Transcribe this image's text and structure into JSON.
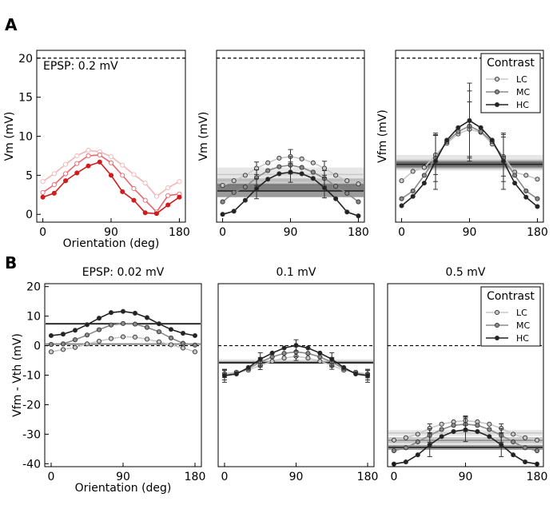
{
  "figure": {
    "panel_letters": [
      "A",
      "B"
    ]
  },
  "colors": {
    "red": [
      "#f4b3b5",
      "#e8656c",
      "#d01c1f"
    ],
    "gray": [
      "#c8c8c8",
      "#8a8a8a",
      "#222222"
    ]
  },
  "chart_data": [
    {
      "type": "line",
      "panel": "A",
      "ylabel": "Vm (mV)",
      "xlabel": "Orientation (deg)",
      "annotation": "EPSP: 0.2 mV",
      "threshold": 20,
      "xlim": [
        -8,
        188
      ],
      "ylim": [
        -1,
        21
      ],
      "xticks": [
        0,
        90,
        180
      ],
      "yticks": [
        0,
        5,
        10,
        15,
        20
      ],
      "palette": "red",
      "x": [
        0,
        15,
        30,
        45,
        60,
        75,
        90,
        105,
        120,
        135,
        150,
        165,
        180
      ],
      "series": [
        {
          "values": [
            4.2,
            5.2,
            6.4,
            7.5,
            8.2,
            8.0,
            7.4,
            6.3,
            5.1,
            4.0,
            2.3,
            3.4,
            4.2
          ],
          "band": [
            null,
            null
          ]
        },
        {
          "values": [
            2.8,
            3.8,
            5.2,
            6.5,
            7.5,
            7.6,
            6.6,
            5.0,
            3.3,
            1.8,
            0.3,
            2.4,
            2.6
          ],
          "band": [
            null,
            null
          ]
        },
        {
          "values": [
            2.2,
            2.7,
            4.3,
            5.3,
            6.2,
            6.7,
            5.0,
            2.9,
            1.8,
            0.2,
            0.1,
            1.2,
            2.2
          ],
          "band": [
            null,
            null
          ]
        }
      ]
    },
    {
      "type": "line",
      "panel": "A",
      "ylabel": "Vm (mV)",
      "xlabel": "",
      "annotation": "",
      "threshold": 20,
      "xlim": [
        -8,
        188
      ],
      "ylim": [
        -1,
        21
      ],
      "xticks": [
        0,
        90,
        180
      ],
      "yticks": [],
      "palette": "gray",
      "x": [
        0,
        15,
        30,
        45,
        60,
        75,
        90,
        105,
        120,
        135,
        150,
        165,
        180
      ],
      "series": [
        {
          "values": [
            3.7,
            4.3,
            5.0,
            5.9,
            6.6,
            7.2,
            7.4,
            7.1,
            6.6,
            5.9,
            5.0,
            4.3,
            3.9
          ],
          "err": [
            0,
            0,
            0,
            0.8,
            0,
            0,
            0.9,
            0,
            0,
            0.9,
            0,
            0,
            0
          ],
          "band": [
            4.2,
            6.0
          ]
        },
        {
          "values": [
            1.6,
            2.8,
            3.5,
            4.7,
            5.6,
            6.1,
            6.3,
            6.0,
            5.4,
            4.6,
            3.6,
            2.7,
            1.6
          ],
          "err": [
            0,
            0,
            0,
            1.0,
            0,
            0,
            1.1,
            0,
            0,
            1.0,
            0,
            0,
            0
          ],
          "band": [
            3.1,
            4.6
          ]
        },
        {
          "values": [
            0.0,
            0.4,
            1.8,
            3.3,
            4.5,
            5.2,
            5.4,
            5.2,
            4.6,
            3.4,
            2.0,
            0.3,
            -0.2
          ],
          "err": [
            0,
            0,
            0,
            1.3,
            0,
            0,
            1.3,
            0,
            0,
            1.3,
            0,
            0,
            0
          ],
          "band": [
            2.2,
            3.8
          ]
        }
      ]
    },
    {
      "type": "line",
      "panel": "A",
      "ylabel": "Vfm (mV)",
      "xlabel": "",
      "annotation": "",
      "threshold": 20,
      "xlim": [
        -8,
        188
      ],
      "ylim": [
        -1,
        21
      ],
      "xticks": [
        0,
        90,
        180
      ],
      "yticks": [],
      "palette": "gray",
      "legend": {
        "title": "Contrast",
        "entries": [
          "LC",
          "MC",
          "HC"
        ],
        "placement": "top-right"
      },
      "x": [
        0,
        15,
        30,
        45,
        60,
        75,
        90,
        105,
        120,
        135,
        150,
        165,
        180
      ],
      "series": [
        {
          "values": [
            4.3,
            5.5,
            6.0,
            7.6,
            9.1,
            10.3,
            10.9,
            10.5,
            9.0,
            7.4,
            5.4,
            5.0,
            4.5
          ],
          "err": [
            0,
            0,
            0,
            2.5,
            0,
            0,
            3.5,
            0,
            0,
            2.5,
            0,
            0,
            0
          ],
          "band": [
            5.6,
            7.6
          ]
        },
        {
          "values": [
            2.0,
            3.0,
            5.0,
            7.2,
            9.3,
            10.6,
            11.3,
            10.6,
            9.3,
            7.2,
            5.0,
            3.0,
            2.0
          ],
          "err": [
            0,
            0,
            0,
            3.0,
            0,
            0,
            4.5,
            0,
            0,
            3.0,
            0,
            0,
            0
          ],
          "band": [
            5.8,
            7.0
          ]
        },
        {
          "values": [
            1.1,
            2.3,
            4.0,
            6.8,
            9.5,
            11.1,
            12.0,
            11.1,
            9.5,
            6.8,
            4.0,
            2.2,
            1.0
          ],
          "err": [
            0,
            0,
            0,
            3.6,
            0,
            0,
            4.8,
            0,
            0,
            3.6,
            0,
            0,
            0
          ],
          "band": [
            6.0,
            6.8
          ]
        }
      ]
    },
    {
      "type": "line",
      "panel": "B",
      "title": "EPSP: 0.02 mV",
      "ylabel": "Vfm - Vth (mV)",
      "xlabel": "Orientation (deg)",
      "annotation": "",
      "threshold": 0,
      "xlim": [
        -8,
        188
      ],
      "ylim": [
        -41,
        21
      ],
      "xticks": [
        0,
        90,
        180
      ],
      "yticks": [
        -40,
        -30,
        -20,
        -10,
        0,
        10,
        20
      ],
      "palette": "gray",
      "x": [
        0,
        15,
        30,
        45,
        60,
        75,
        90,
        105,
        120,
        135,
        150,
        165,
        180
      ],
      "series": [
        {
          "values": [
            -2.1,
            -1.3,
            -0.6,
            0.6,
            1.5,
            2.4,
            3.0,
            2.9,
            2.2,
            1.3,
            0.3,
            -0.8,
            -2.1
          ],
          "band": [
            0.3,
            0.9
          ]
        },
        {
          "values": [
            0.4,
            0.6,
            2.0,
            3.6,
            5.4,
            7.0,
            7.5,
            7.3,
            6.2,
            4.7,
            2.6,
            0.8,
            0.2
          ],
          "band": [
            0.2,
            0.8
          ]
        },
        {
          "values": [
            3.4,
            3.9,
            5.2,
            7.1,
            9.3,
            11.2,
            11.6,
            11.0,
            9.5,
            7.4,
            5.5,
            4.2,
            3.4
          ],
          "band": [
            7.1,
            7.7
          ]
        }
      ]
    },
    {
      "type": "line",
      "panel": "B",
      "title": "0.1 mV",
      "ylabel": "",
      "xlabel": "",
      "annotation": "",
      "threshold": 0,
      "xlim": [
        -8,
        188
      ],
      "ylim": [
        -41,
        21
      ],
      "xticks": [
        0,
        90,
        180
      ],
      "yticks": [],
      "palette": "gray",
      "x": [
        0,
        15,
        30,
        45,
        60,
        75,
        90,
        105,
        120,
        135,
        150,
        165,
        180
      ],
      "series": [
        {
          "values": [
            -9.5,
            -9.0,
            -8.3,
            -6.7,
            -5.3,
            -4.2,
            -3.6,
            -4.2,
            -5.3,
            -6.7,
            -8.3,
            -9.0,
            -9.6
          ],
          "err": [
            1.3,
            0,
            0,
            1.4,
            0,
            0,
            1.4,
            0,
            0,
            1.3,
            0,
            0,
            1.3
          ],
          "band": [
            -6.0,
            -4.6
          ]
        },
        {
          "values": [
            -10.0,
            -9.4,
            -7.8,
            -5.6,
            -3.8,
            -2.6,
            -2.1,
            -2.6,
            -3.8,
            -5.6,
            -7.8,
            -9.4,
            -10.0
          ],
          "err": [
            1.6,
            0,
            0,
            1.6,
            0,
            0,
            1.7,
            0,
            0,
            1.6,
            0,
            0,
            1.6
          ],
          "band": [
            -6.1,
            -5.3
          ]
        },
        {
          "values": [
            -10.2,
            -9.6,
            -7.4,
            -4.6,
            -2.5,
            -0.8,
            0.1,
            -0.8,
            -2.5,
            -4.6,
            -7.4,
            -9.6,
            -10.2
          ],
          "err": [
            2.2,
            0,
            0,
            2.2,
            0,
            0,
            1.9,
            0,
            0,
            2.2,
            0,
            0,
            2.2
          ],
          "band": [
            -6.1,
            -5.5
          ]
        }
      ]
    },
    {
      "type": "line",
      "panel": "B",
      "title": "0.5 mV",
      "ylabel": "",
      "xlabel": "",
      "annotation": "",
      "threshold": 0,
      "xlim": [
        -8,
        188
      ],
      "ylim": [
        -41,
        21
      ],
      "xticks": [
        0,
        90,
        180
      ],
      "yticks": [],
      "palette": "gray",
      "legend": {
        "title": "Contrast",
        "entries": [
          "LC",
          "MC",
          "HC"
        ],
        "placement": "top-right"
      },
      "x": [
        0,
        15,
        30,
        45,
        60,
        75,
        90,
        105,
        120,
        135,
        150,
        165,
        180
      ],
      "series": [
        {
          "values": [
            -32.0,
            -31.2,
            -30.0,
            -28.0,
            -26.6,
            -25.8,
            -25.4,
            -25.8,
            -26.6,
            -28.0,
            -30.0,
            -31.2,
            -32.0
          ],
          "err": [
            0,
            0,
            0,
            1.5,
            0,
            0,
            1.6,
            0,
            0,
            1.5,
            0,
            0,
            0
          ],
          "band": [
            -30.6,
            -28.6
          ]
        },
        {
          "values": [
            -35.6,
            -34.6,
            -32.6,
            -30.4,
            -28.4,
            -27.0,
            -26.6,
            -27.0,
            -28.4,
            -30.4,
            -32.6,
            -34.6,
            -35.6
          ],
          "err": [
            0,
            0,
            0,
            2.3,
            0,
            0,
            2.5,
            0,
            0,
            2.3,
            0,
            0,
            0
          ],
          "band": [
            -33.2,
            -31.0
          ]
        },
        {
          "values": [
            -40.1,
            -39.4,
            -37.0,
            -33.6,
            -30.8,
            -29.1,
            -28.5,
            -29.1,
            -30.8,
            -33.6,
            -37.0,
            -39.4,
            -40.1
          ],
          "err": [
            0,
            0,
            0,
            4.0,
            0,
            0,
            4.0,
            0,
            0,
            4.0,
            0,
            0,
            0
          ],
          "band": [
            -35.3,
            -33.6
          ]
        }
      ]
    }
  ]
}
